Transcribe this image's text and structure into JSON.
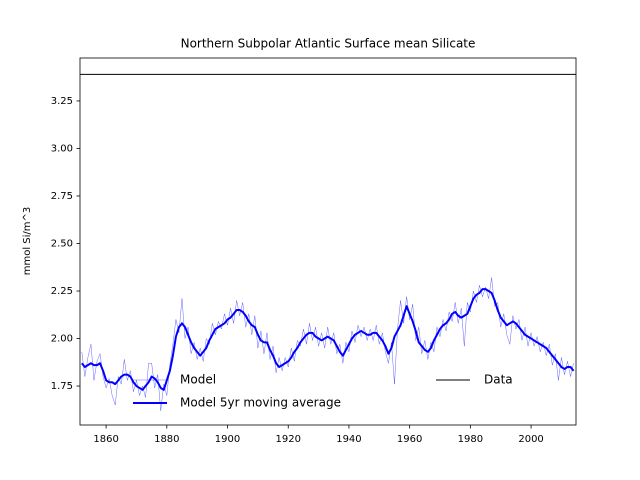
{
  "chart_data": {
    "type": "line",
    "title": "Northern Subpolar Atlantic Surface mean Silicate",
    "y_label": "mmol Si/m^3",
    "xlim": [
      1851.4,
      2014.8
    ],
    "ylim": [
      1.545,
      3.476
    ],
    "xticks": [
      1860,
      1880,
      1900,
      1920,
      1940,
      1960,
      1980,
      2000
    ],
    "yticks": [
      1.75,
      {
        "value": 2,
        "label": "2.00"
      },
      2.25,
      {
        "value": 2.5,
        "label": "2.50"
      },
      2.75,
      {
        "value": 3,
        "label": "3.00"
      },
      3.25
    ],
    "legend": "lower center",
    "x": [
      1852,
      1853,
      1854,
      1855,
      1856,
      1857,
      1858,
      1859,
      1860,
      1861,
      1862,
      1863,
      1864,
      1865,
      1866,
      1867,
      1868,
      1869,
      1870,
      1871,
      1872,
      1873,
      1874,
      1875,
      1876,
      1877,
      1878,
      1879,
      1880,
      1881,
      1882,
      1883,
      1884,
      1885,
      1886,
      1887,
      1888,
      1889,
      1890,
      1891,
      1892,
      1893,
      1894,
      1895,
      1896,
      1897,
      1898,
      1899,
      1900,
      1901,
      1902,
      1903,
      1904,
      1905,
      1906,
      1907,
      1908,
      1909,
      1910,
      1911,
      1912,
      1913,
      1914,
      1915,
      1916,
      1917,
      1918,
      1919,
      1920,
      1921,
      1922,
      1923,
      1924,
      1925,
      1926,
      1927,
      1928,
      1929,
      1930,
      1931,
      1932,
      1933,
      1934,
      1935,
      1936,
      1937,
      1938,
      1939,
      1940,
      1941,
      1942,
      1943,
      1944,
      1945,
      1946,
      1947,
      1948,
      1949,
      1950,
      1951,
      1952,
      1953,
      1954,
      1955,
      1956,
      1957,
      1958,
      1959,
      1960,
      1961,
      1962,
      1963,
      1964,
      1965,
      1966,
      1967,
      1968,
      1969,
      1970,
      1971,
      1972,
      1973,
      1974,
      1975,
      1976,
      1977,
      1978,
      1979,
      1980,
      1981,
      1982,
      1983,
      1984,
      1985,
      1986,
      1987,
      1988,
      1989,
      1990,
      1991,
      1992,
      1993,
      1994,
      1995,
      1996,
      1997,
      1998,
      1999,
      2000,
      2001,
      2002,
      2003,
      2004,
      2005,
      2006,
      2007,
      2008,
      2009,
      2010,
      2011,
      2012,
      2013,
      2014
    ],
    "series": [
      {
        "name": "Model",
        "color": "#0000ff",
        "width": 0.3,
        "values": [
          1.93,
          1.8,
          1.9,
          1.97,
          1.78,
          1.88,
          1.92,
          1.8,
          1.74,
          1.79,
          1.7,
          1.65,
          1.8,
          1.76,
          1.89,
          1.78,
          1.83,
          1.72,
          1.78,
          1.7,
          1.75,
          1.69,
          1.87,
          1.87,
          1.74,
          1.81,
          1.62,
          1.76,
          1.7,
          1.86,
          1.97,
          2.1,
          2.03,
          2.21,
          2.0,
          2.06,
          1.92,
          1.98,
          1.89,
          1.95,
          1.88,
          2.0,
          1.97,
          2.08,
          2.02,
          2.09,
          2.05,
          2.13,
          2.07,
          2.16,
          2.08,
          2.2,
          2.12,
          2.19,
          2.06,
          2.13,
          2.02,
          2.12,
          1.95,
          2.04,
          1.92,
          2.03,
          1.89,
          1.96,
          1.82,
          1.9,
          1.83,
          1.9,
          1.85,
          1.95,
          1.88,
          1.99,
          1.96,
          2.05,
          1.97,
          2.08,
          1.99,
          2.06,
          1.96,
          2.03,
          1.95,
          2.06,
          1.97,
          2.03,
          1.92,
          1.97,
          1.87,
          1.98,
          1.93,
          2.04,
          1.98,
          2.07,
          2.01,
          2.06,
          1.99,
          2.05,
          1.99,
          2.07,
          1.97,
          2.03,
          1.93,
          1.87,
          1.98,
          1.76,
          2.05,
          2.2,
          2.08,
          2.22,
          2.1,
          2.18,
          1.99,
          2.06,
          1.92,
          1.99,
          1.89,
          1.98,
          1.93,
          2.06,
          2.01,
          2.1,
          2.04,
          2.14,
          2.09,
          2.19,
          2.08,
          2.16,
          1.96,
          2.19,
          2.14,
          2.25,
          2.19,
          2.28,
          2.22,
          2.27,
          2.21,
          2.32,
          2.17,
          2.19,
          2.06,
          2.13,
          2.02,
          1.97,
          2.12,
          2.05,
          2.1,
          1.99,
          2.06,
          1.96,
          2.03,
          1.96,
          2.01,
          1.93,
          1.98,
          1.91,
          1.97,
          1.86,
          1.92,
          1.78,
          1.9,
          1.81,
          1.88,
          1.8,
          1.87
        ]
      },
      {
        "name": "Model 5yr moving average",
        "color": "#0000ff",
        "width": 2,
        "values": [
          1.87,
          1.85,
          1.86,
          1.87,
          1.86,
          1.86,
          1.87,
          1.83,
          1.78,
          1.77,
          1.77,
          1.76,
          1.78,
          1.8,
          1.81,
          1.81,
          1.8,
          1.77,
          1.75,
          1.74,
          1.73,
          1.75,
          1.77,
          1.8,
          1.79,
          1.77,
          1.74,
          1.73,
          1.78,
          1.83,
          1.91,
          2.01,
          2.06,
          2.08,
          2.06,
          2.02,
          1.98,
          1.95,
          1.93,
          1.91,
          1.93,
          1.95,
          1.99,
          2.02,
          2.05,
          2.06,
          2.07,
          2.08,
          2.1,
          2.11,
          2.13,
          2.15,
          2.15,
          2.14,
          2.12,
          2.09,
          2.07,
          2.06,
          2.02,
          1.99,
          1.98,
          1.98,
          1.94,
          1.91,
          1.87,
          1.85,
          1.86,
          1.87,
          1.88,
          1.9,
          1.93,
          1.95,
          1.98,
          2.0,
          2.02,
          2.03,
          2.03,
          2.01,
          2.0,
          1.99,
          2.0,
          2.01,
          2.0,
          1.99,
          1.96,
          1.93,
          1.91,
          1.94,
          1.97,
          2.0,
          2.02,
          2.03,
          2.04,
          2.03,
          2.02,
          2.02,
          2.03,
          2.03,
          2.01,
          1.99,
          1.96,
          1.92,
          1.95,
          2.01,
          2.04,
          2.07,
          2.12,
          2.17,
          2.13,
          2.09,
          2.04,
          1.98,
          1.96,
          1.94,
          1.93,
          1.95,
          1.99,
          2.02,
          2.05,
          2.07,
          2.08,
          2.1,
          2.13,
          2.14,
          2.12,
          2.11,
          2.12,
          2.13,
          2.17,
          2.21,
          2.23,
          2.24,
          2.26,
          2.26,
          2.25,
          2.24,
          2.2,
          2.15,
          2.11,
          2.09,
          2.07,
          2.08,
          2.09,
          2.08,
          2.06,
          2.04,
          2.02,
          2.01,
          2.0,
          1.99,
          1.98,
          1.97,
          1.96,
          1.95,
          1.93,
          1.91,
          1.89,
          1.87,
          1.85,
          1.84,
          1.85,
          1.85,
          1.83
        ]
      }
    ],
    "reference_line": {
      "name": "Data",
      "color": "#000000",
      "value": 3.39
    }
  }
}
